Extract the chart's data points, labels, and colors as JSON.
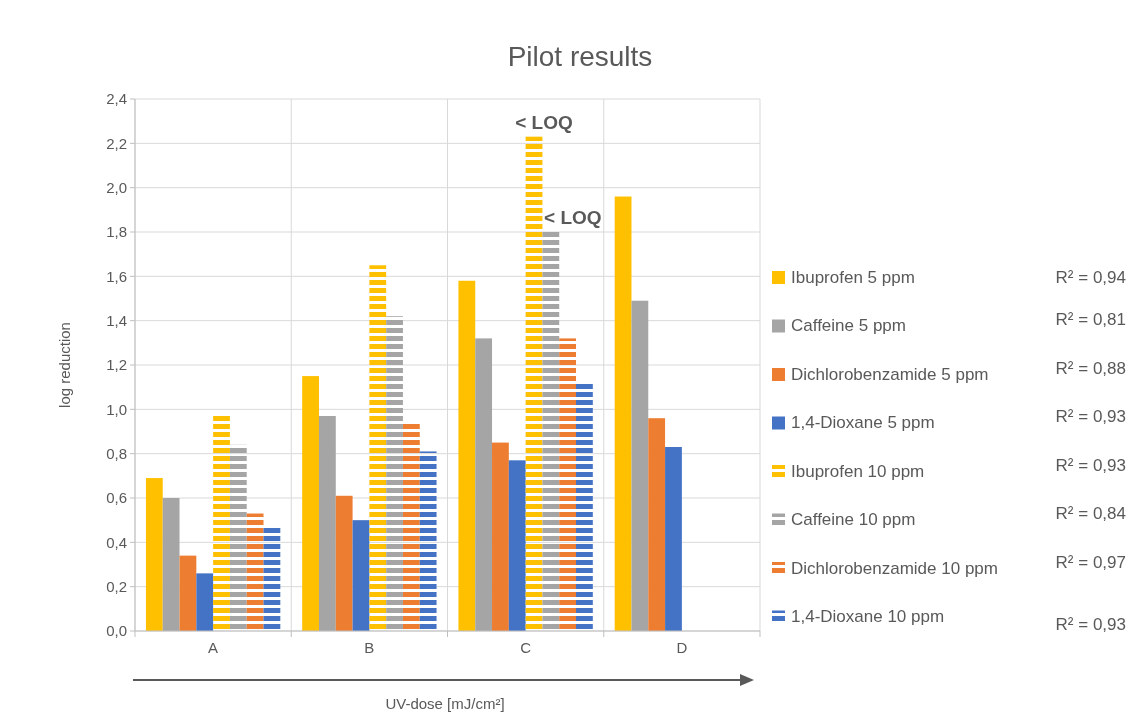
{
  "chart_data": {
    "type": "bar",
    "title": "Pilot results",
    "xlabel": "UV-dose [mJ/cm²]",
    "ylabel": "log reduction",
    "categories": [
      "A",
      "B",
      "C",
      "D"
    ],
    "series": [
      {
        "name": "Ibuprofen 5 ppm",
        "color": "#ffc000",
        "values": [
          0.69,
          1.15,
          1.58,
          1.96
        ]
      },
      {
        "name": "Caffeine 5 ppm",
        "color": "#a5a5a5",
        "values": [
          0.6,
          0.97,
          1.32,
          1.49
        ]
      },
      {
        "name": "Dichlorobenzamide 5 ppm",
        "color": "#ed7d31",
        "values": [
          0.34,
          0.61,
          0.85,
          0.96
        ]
      },
      {
        "name": "1,4-Dioxane 5 ppm",
        "color": "#4472c4",
        "values": [
          0.26,
          0.5,
          0.77,
          0.83
        ]
      },
      {
        "name": "Ibuprofen 10 ppm",
        "color": "#ffc000",
        "line_style": "dashed",
        "values": [
          0.97,
          1.65,
          2.23,
          null
        ]
      },
      {
        "name": "Caffeine 10 ppm",
        "color": "#a5a5a5",
        "line_style": "dashed",
        "values": [
          0.84,
          1.42,
          1.8,
          null
        ]
      },
      {
        "name": "Dichlorobenzamide 10 ppm",
        "color": "#ed7d31",
        "line_style": "dashed",
        "values": [
          0.53,
          0.94,
          1.32,
          null
        ]
      },
      {
        "name": "1,4-Dioxane 10 ppm",
        "color": "#4472c4",
        "line_style": "dashed",
        "values": [
          0.47,
          0.81,
          1.12,
          null
        ]
      }
    ],
    "ylim": [
      0,
      2.4
    ],
    "yticks": [
      {
        "value": 0,
        "label": "0,0"
      },
      {
        "value": 0.2,
        "label": "0,2"
      },
      {
        "value": 0.4,
        "label": "0,4"
      },
      {
        "value": 0.6,
        "label": "0,6"
      },
      {
        "value": 0.8,
        "label": "0,8"
      },
      {
        "value": 1,
        "label": "1,0"
      },
      {
        "value": 1.2,
        "label": "1,2"
      },
      {
        "value": 1.4,
        "label": "1,4"
      },
      {
        "value": 1.6,
        "label": "1,6"
      },
      {
        "value": 1.8,
        "label": "1,8"
      },
      {
        "value": 2,
        "label": "2,0"
      },
      {
        "value": 2.2,
        "label": "2,2"
      },
      {
        "value": 2.4,
        "label": "2,4"
      }
    ],
    "grid": true,
    "legend": "right",
    "annotations": [
      {
        "text": "< LOQ",
        "x": "C",
        "y": 2.23
      },
      {
        "text": "< LOQ",
        "x": "C",
        "y": 1.8
      },
      "R² = 0,94",
      "R² = 0,81",
      "R² = 0,88",
      "R² = 0,93",
      "R² = 0,93",
      "R² = 0,84",
      "R² = 0,97",
      "R² = 0,93"
    ]
  }
}
